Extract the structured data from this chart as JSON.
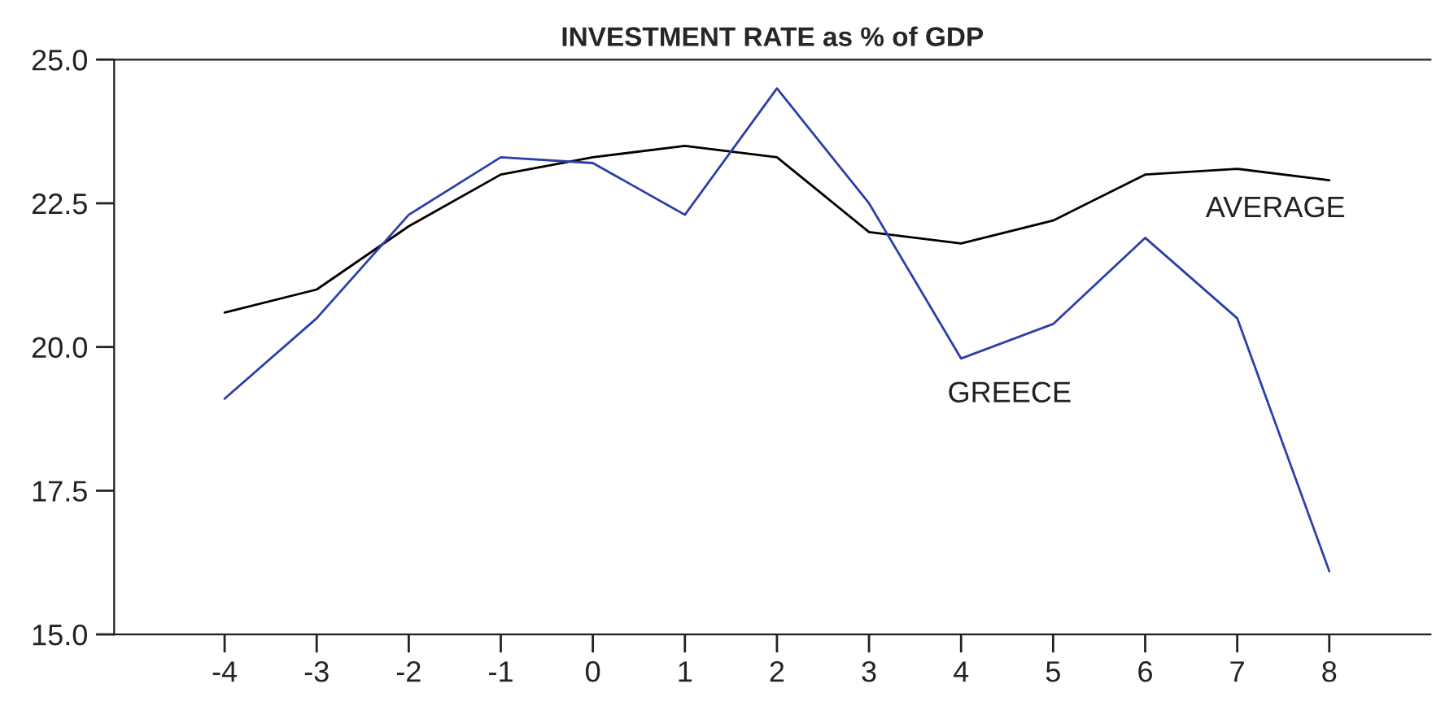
{
  "chart_data": {
    "type": "line",
    "title": "INVESTMENT RATE as % of GDP",
    "x": [
      -4,
      -3,
      -2,
      -1,
      0,
      1,
      2,
      3,
      4,
      5,
      6,
      7,
      8
    ],
    "series": [
      {
        "name": "AVERAGE",
        "color": "#000000",
        "values": [
          20.6,
          21.0,
          22.1,
          23.0,
          23.3,
          23.5,
          23.3,
          22.0,
          21.8,
          22.2,
          23.0,
          23.1,
          22.9
        ]
      },
      {
        "name": "GREECE",
        "color": "#2b3fa8",
        "values": [
          19.1,
          20.5,
          22.3,
          23.3,
          23.2,
          22.3,
          24.5,
          22.5,
          19.8,
          20.4,
          21.9,
          20.5,
          16.1
        ]
      }
    ],
    "xlim": [
      -5.2,
      9.1
    ],
    "xticks": [
      -4,
      -3,
      -2,
      -1,
      0,
      1,
      2,
      3,
      4,
      5,
      6,
      7,
      8
    ],
    "ylim": [
      15,
      25
    ],
    "yticks": [
      {
        "value": 15,
        "label": "15.0"
      },
      {
        "value": 17.5,
        "label": "17.5"
      },
      {
        "value": 20,
        "label": "20.0"
      },
      {
        "value": 22.5,
        "label": "22.5"
      },
      {
        "value": 25,
        "label": "25.0"
      }
    ],
    "grid": false,
    "legend": false,
    "marker": "none",
    "line_style": "solid"
  }
}
